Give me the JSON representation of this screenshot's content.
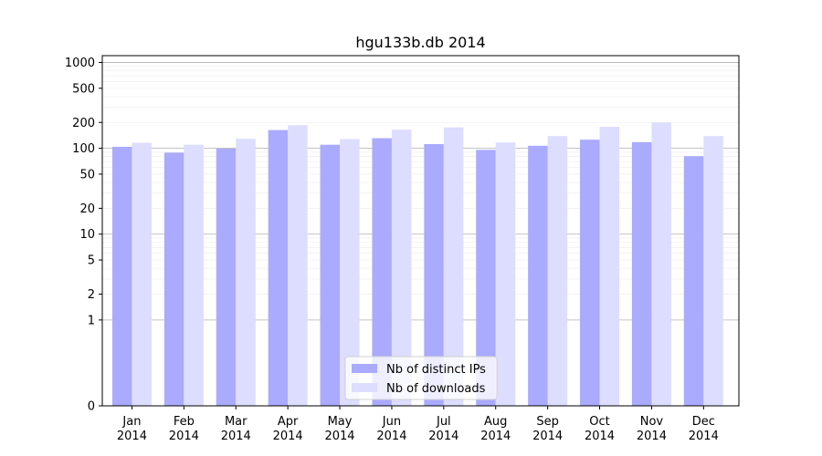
{
  "chart_data": {
    "type": "bar",
    "title": "hgu133b.db 2014",
    "xlabel": "",
    "ylabel": "",
    "y_scale": "symlog",
    "ylim": [
      0,
      1200
    ],
    "y_ticks": [
      0,
      1,
      2,
      5,
      10,
      20,
      50,
      100,
      200,
      500,
      1000
    ],
    "categories": [
      "Jan 2014",
      "Feb 2014",
      "Mar 2014",
      "Apr 2014",
      "May 2014",
      "Jun 2014",
      "Jul 2014",
      "Aug 2014",
      "Sep 2014",
      "Oct 2014",
      "Nov 2014",
      "Dec 2014"
    ],
    "category_lines": [
      [
        "Jan",
        "2014"
      ],
      [
        "Feb",
        "2014"
      ],
      [
        "Mar",
        "2014"
      ],
      [
        "Apr",
        "2014"
      ],
      [
        "May",
        "2014"
      ],
      [
        "Jun",
        "2014"
      ],
      [
        "Jul",
        "2014"
      ],
      [
        "Aug",
        "2014"
      ],
      [
        "Sep",
        "2014"
      ],
      [
        "Oct",
        "2014"
      ],
      [
        "Nov",
        "2014"
      ],
      [
        "Dec",
        "2014"
      ]
    ],
    "series": [
      {
        "name": "Nb of distinct IPs",
        "color": "#aaaaff",
        "values": [
          104,
          89,
          99,
          163,
          110,
          131,
          112,
          96,
          107,
          126,
          118,
          81
        ]
      },
      {
        "name": "Nb of downloads",
        "color": "#ddddff",
        "values": [
          116,
          110,
          129,
          186,
          128,
          165,
          175,
          117,
          139,
          178,
          199,
          139
        ]
      }
    ],
    "grid": true,
    "legend_position": "bottom-center"
  }
}
